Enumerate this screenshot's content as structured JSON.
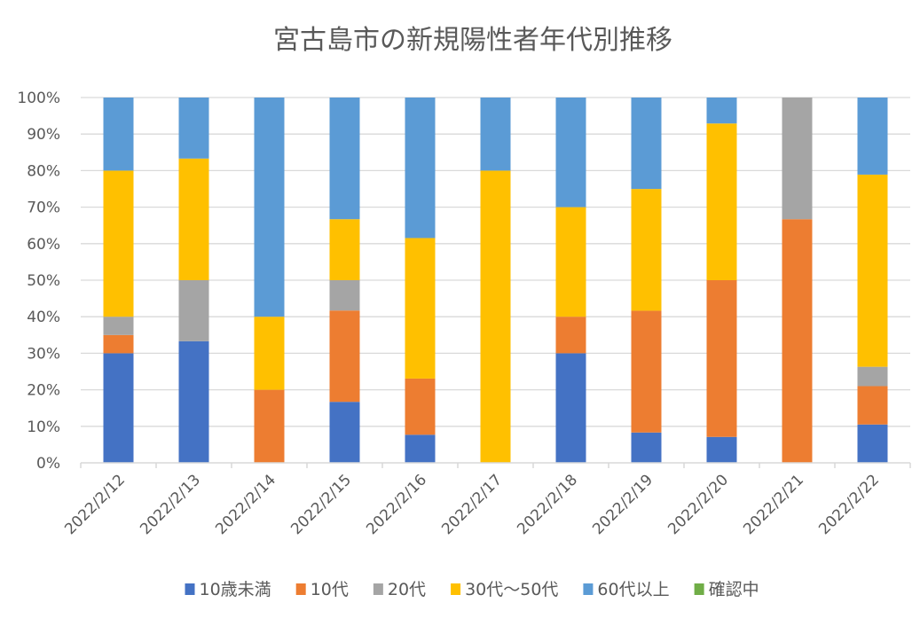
{
  "chart_data": {
    "type": "bar",
    "stacked": "percent",
    "title": "宮古島市の新規陽性者年代別推移",
    "xlabel": "",
    "ylabel": "",
    "ylim": [
      0,
      100
    ],
    "yticks": [
      "0%",
      "10%",
      "20%",
      "30%",
      "40%",
      "50%",
      "60%",
      "70%",
      "80%",
      "90%",
      "100%"
    ],
    "grid": true,
    "legend_position": "bottom",
    "categories": [
      "2022/2/12",
      "2022/2/13",
      "2022/2/14",
      "2022/2/15",
      "2022/2/16",
      "2022/2/17",
      "2022/2/18",
      "2022/2/19",
      "2022/2/20",
      "2022/2/21",
      "2022/2/22"
    ],
    "series": [
      {
        "name": "10歳未満",
        "color": "#4472C4",
        "values": [
          30,
          33.3,
          0,
          16.7,
          7.7,
          0,
          30,
          8.3,
          7.1,
          0,
          10.5
        ]
      },
      {
        "name": "10代",
        "color": "#ED7D31",
        "values": [
          5,
          0,
          20,
          25,
          15.4,
          0,
          10,
          33.3,
          42.9,
          66.7,
          10.5
        ]
      },
      {
        "name": "20代",
        "color": "#A5A5A5",
        "values": [
          5,
          16.7,
          0,
          8.3,
          0,
          0,
          0,
          0,
          0,
          33.3,
          5.3
        ]
      },
      {
        "name": "30代～50代",
        "color": "#FFC000",
        "values": [
          40,
          33.3,
          20,
          16.7,
          38.5,
          80,
          30,
          33.3,
          42.9,
          0,
          52.6
        ]
      },
      {
        "name": "60代以上",
        "color": "#5B9BD5",
        "values": [
          20,
          16.7,
          60,
          33.3,
          38.5,
          20,
          30,
          25,
          7.1,
          0,
          21.1
        ]
      },
      {
        "name": "確認中",
        "color": "#70AD47",
        "values": [
          0,
          0,
          0,
          0,
          0,
          0,
          0,
          0,
          0,
          0,
          0
        ]
      }
    ]
  }
}
